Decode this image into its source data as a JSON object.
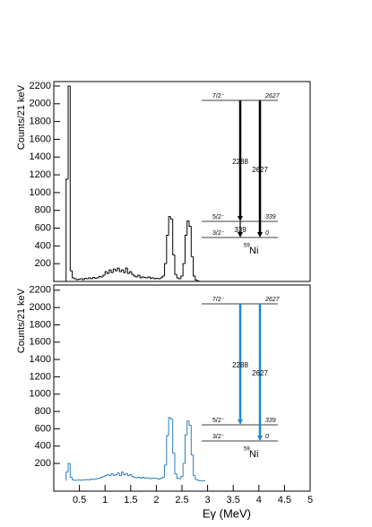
{
  "chart_data": [
    {
      "type": "histogram",
      "color": "#000000",
      "arrow_color": "#000000",
      "y_label": "Counts/21 keV",
      "xlim": [
        0,
        5
      ],
      "ylim": [
        0,
        2250
      ],
      "yticks": [
        200,
        400,
        600,
        800,
        1000,
        1200,
        1400,
        1600,
        1800,
        2000,
        2200
      ],
      "bins": [
        0.24,
        0.28,
        0.32,
        0.36,
        0.4,
        0.44,
        0.48,
        0.52,
        0.56,
        0.6,
        0.64,
        0.68,
        0.72,
        0.76,
        0.8,
        0.84,
        0.88,
        0.92,
        0.96,
        1.0,
        1.04,
        1.08,
        1.12,
        1.16,
        1.2,
        1.24,
        1.28,
        1.32,
        1.36,
        1.4,
        1.44,
        1.48,
        1.52,
        1.56,
        1.6,
        1.64,
        1.68,
        1.72,
        1.76,
        1.8,
        1.84,
        1.88,
        1.92,
        1.96,
        2.0,
        2.04,
        2.08,
        2.12,
        2.16,
        2.2,
        2.24,
        2.28,
        2.32,
        2.36,
        2.4,
        2.44,
        2.48,
        2.52,
        2.56,
        2.6,
        2.64,
        2.68,
        2.72,
        2.76,
        2.8,
        2.84,
        2.88,
        2.92,
        2.96
      ],
      "counts": [
        1150,
        2200,
        120,
        40,
        30,
        20,
        25,
        30,
        20,
        35,
        30,
        40,
        30,
        45,
        35,
        40,
        55,
        50,
        70,
        110,
        90,
        130,
        100,
        140,
        120,
        150,
        110,
        130,
        100,
        150,
        90,
        110,
        80,
        60,
        50,
        70,
        40,
        50,
        45,
        40,
        50,
        35,
        40,
        30,
        35,
        30,
        40,
        60,
        200,
        520,
        730,
        700,
        300,
        80,
        40,
        30,
        60,
        200,
        520,
        680,
        620,
        280,
        60,
        15,
        5,
        0,
        0,
        0
      ],
      "level_scheme": {
        "top_spin": "7/2⁻",
        "top_energy": "2627",
        "mid_spin": "5/2⁻",
        "mid_energy": "339",
        "ground_spin": "3/2⁻",
        "ground_energy": "0",
        "transitions": [
          "2288",
          "2627",
          "339"
        ],
        "mass": "59",
        "nucleus": "Ni"
      }
    },
    {
      "type": "histogram",
      "color": "#2a7fc0",
      "arrow_color": "#1a8ad4",
      "y_label": "Counts/21 keV",
      "x_label": "Eγ (MeV)",
      "xlim": [
        0,
        5
      ],
      "ylim": [
        -120,
        2260
      ],
      "xticks": [
        0.5,
        1,
        1.5,
        2,
        2.5,
        3,
        3.5,
        4,
        4.5,
        5
      ],
      "yticks": [
        200,
        400,
        600,
        800,
        1000,
        1200,
        1400,
        1600,
        1800,
        2000,
        2200
      ],
      "bins": [
        0.24,
        0.28,
        0.32,
        0.36,
        0.4,
        0.44,
        0.48,
        0.52,
        0.56,
        0.6,
        0.64,
        0.68,
        0.72,
        0.76,
        0.8,
        0.84,
        0.88,
        0.92,
        0.96,
        1.0,
        1.04,
        1.08,
        1.12,
        1.16,
        1.2,
        1.24,
        1.28,
        1.32,
        1.36,
        1.4,
        1.44,
        1.48,
        1.52,
        1.56,
        1.6,
        1.64,
        1.68,
        1.72,
        1.76,
        1.8,
        1.84,
        1.88,
        1.92,
        1.96,
        2.0,
        2.04,
        2.08,
        2.12,
        2.16,
        2.2,
        2.24,
        2.28,
        2.32,
        2.36,
        2.4,
        2.44,
        2.48,
        2.52,
        2.56,
        2.6,
        2.64,
        2.68,
        2.72,
        2.76,
        2.8,
        2.84,
        2.88,
        2.92,
        2.96
      ],
      "counts": [
        100,
        200,
        40,
        10,
        5,
        5,
        10,
        5,
        10,
        10,
        15,
        10,
        20,
        15,
        20,
        25,
        30,
        40,
        50,
        60,
        70,
        60,
        80,
        60,
        70,
        90,
        60,
        100,
        70,
        80,
        60,
        70,
        50,
        40,
        35,
        40,
        30,
        40,
        30,
        35,
        30,
        25,
        30,
        30,
        25,
        20,
        30,
        40,
        180,
        520,
        730,
        710,
        320,
        80,
        30,
        25,
        50,
        200,
        530,
        690,
        640,
        300,
        60,
        15,
        5,
        0,
        0,
        0
      ],
      "level_scheme": {
        "top_spin": "7/2⁻",
        "top_energy": "2627",
        "mid_spin": "5/2⁻",
        "mid_energy": "339",
        "ground_spin": "3/2⁻",
        "ground_energy": "0",
        "transitions": [
          "2288",
          "2627"
        ],
        "mass": "59",
        "nucleus": "Ni"
      }
    }
  ]
}
